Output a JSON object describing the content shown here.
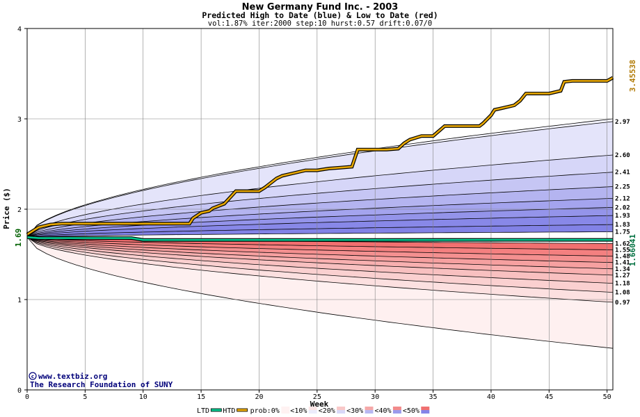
{
  "chart_data": {
    "type": "area",
    "title": "New Germany Fund Inc. - 2003",
    "subtitle": "Predicted High to Date (blue) &  Low to Date (red)",
    "params_line": "vol:1.87% iter:2000 step:10 hurst:0.57 drift:0.07/0",
    "xlabel": "Week",
    "ylabel": "Price ($)",
    "xlim": [
      0,
      50.5
    ],
    "ylim": [
      0,
      4
    ],
    "x_ticks": [
      0,
      5,
      10,
      15,
      20,
      25,
      30,
      35,
      40,
      45,
      50
    ],
    "y_ticks": [
      0,
      1,
      2,
      3,
      4
    ],
    "grid": true,
    "start_price": 1.69,
    "start_price_label": "1.69",
    "htd_final_label": "3.45538",
    "ltd_final_label": "1.66041",
    "final_level_labels": [
      "2.97",
      "2.60",
      "2.41",
      "2.25",
      "2.12",
      "2.02",
      "1.93",
      "1.83",
      "1.75",
      "1.62",
      "1.55",
      "1.48",
      "1.41",
      "1.34",
      "1.27",
      "1.18",
      "1.08",
      "0.97"
    ],
    "high_quantiles_final": [
      3.0,
      2.97,
      2.6,
      2.41,
      2.25,
      2.12,
      2.02,
      1.93,
      1.83,
      1.75
    ],
    "low_quantiles_final": [
      1.62,
      1.55,
      1.48,
      1.41,
      1.34,
      1.27,
      1.18,
      1.08,
      0.97,
      0.46
    ],
    "high_band_colors": [
      "#f4f4fe",
      "#e4e4fa",
      "#d6d6f8",
      "#c6c6f4",
      "#b4b4f0",
      "#a4a4ee",
      "#9494ea",
      "#8888e8",
      "#8282e6"
    ],
    "low_band_colors": [
      "#f27070",
      "#f48080",
      "#f49090",
      "#f6a0a0",
      "#f8b0b0",
      "#f8c0c0",
      "#fad0d0",
      "#fce0e0",
      "#fef0f0"
    ],
    "htd_series": {
      "name": "HTD",
      "color": "#e8a800",
      "x": [
        0,
        0.5,
        1,
        2,
        3,
        4,
        5,
        6,
        7,
        8,
        9,
        10,
        11,
        12,
        13,
        14,
        14.3,
        15,
        15.7,
        16,
        17,
        17.5,
        18,
        19,
        20,
        20.5,
        21,
        21.5,
        22,
        23,
        24,
        25,
        26,
        27,
        28,
        28.5,
        29,
        30,
        31,
        32,
        32.5,
        33,
        34,
        35,
        36,
        37,
        38,
        39,
        39.3,
        40,
        40.3,
        41,
        42,
        42.5,
        43,
        44,
        45,
        46,
        46.3,
        47,
        48,
        49,
        50,
        50.5
      ],
      "y": [
        1.72,
        1.76,
        1.8,
        1.83,
        1.84,
        1.84,
        1.84,
        1.84,
        1.84,
        1.84,
        1.84,
        1.84,
        1.84,
        1.84,
        1.84,
        1.84,
        1.9,
        1.96,
        1.98,
        2.01,
        2.06,
        2.13,
        2.2,
        2.2,
        2.2,
        2.24,
        2.29,
        2.34,
        2.37,
        2.4,
        2.43,
        2.43,
        2.45,
        2.46,
        2.47,
        2.66,
        2.66,
        2.66,
        2.66,
        2.67,
        2.73,
        2.77,
        2.81,
        2.81,
        2.92,
        2.92,
        2.92,
        2.92,
        2.95,
        3.04,
        3.1,
        3.12,
        3.15,
        3.2,
        3.28,
        3.28,
        3.28,
        3.31,
        3.41,
        3.42,
        3.42,
        3.42,
        3.42,
        3.455
      ]
    },
    "ltd_series": {
      "name": "LTD",
      "color": "#00c890",
      "x": [
        0,
        1,
        5,
        9,
        10,
        20,
        30,
        40,
        50,
        50.5
      ],
      "y": [
        1.69,
        1.68,
        1.68,
        1.68,
        1.66,
        1.66,
        1.66,
        1.661,
        1.661,
        1.6604
      ]
    },
    "legend": {
      "items": [
        "LTD",
        "HTD",
        "prob:0%",
        "<10%",
        "<20%",
        "<30%",
        "<40%",
        "<50%"
      ],
      "placement": "bottom"
    }
  },
  "credit": {
    "line1": "www.textbiz.org",
    "line2": "The Research Foundation of SUNY"
  }
}
